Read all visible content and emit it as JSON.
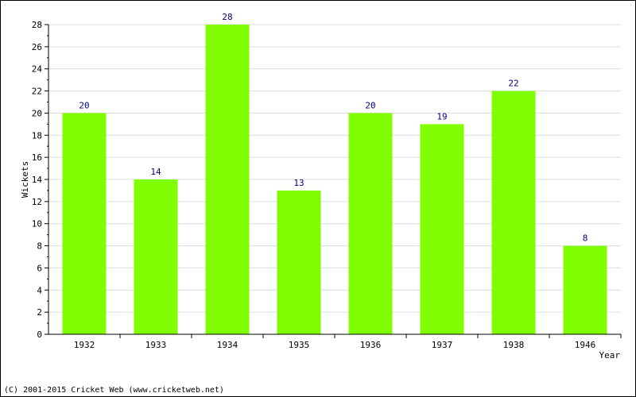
{
  "chart_data": {
    "type": "bar",
    "title": "",
    "xlabel": "Year",
    "ylabel": "Wickets",
    "categories": [
      "1932",
      "1933",
      "1934",
      "1935",
      "1936",
      "1937",
      "1938",
      "1946"
    ],
    "values": [
      20,
      14,
      28,
      13,
      20,
      19,
      22,
      8
    ],
    "ylim": [
      0,
      28
    ],
    "ytick_step": 2,
    "grid": true,
    "bar_color": "#80FF00",
    "label_color": "#000080"
  },
  "footer": {
    "copyright": "(C) 2001-2015 Cricket Web (www.cricketweb.net)"
  }
}
